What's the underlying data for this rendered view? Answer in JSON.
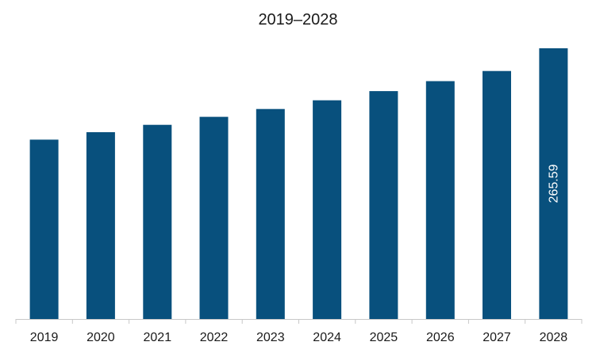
{
  "chart_data": {
    "type": "bar",
    "title": "2019–2028",
    "categories": [
      "2019",
      "2020",
      "2021",
      "2022",
      "2023",
      "2024",
      "2025",
      "2026",
      "2027",
      "2028"
    ],
    "values": [
      176.0,
      183.3,
      190.5,
      198.3,
      206.0,
      214.6,
      223.6,
      233.4,
      243.3,
      265.59
    ],
    "data_labels": [
      {
        "category": "2028",
        "text": "265.59"
      }
    ],
    "ylim": [
      0,
      265.59
    ],
    "bar_color": "#08507d",
    "grid": false,
    "legend": "none"
  }
}
